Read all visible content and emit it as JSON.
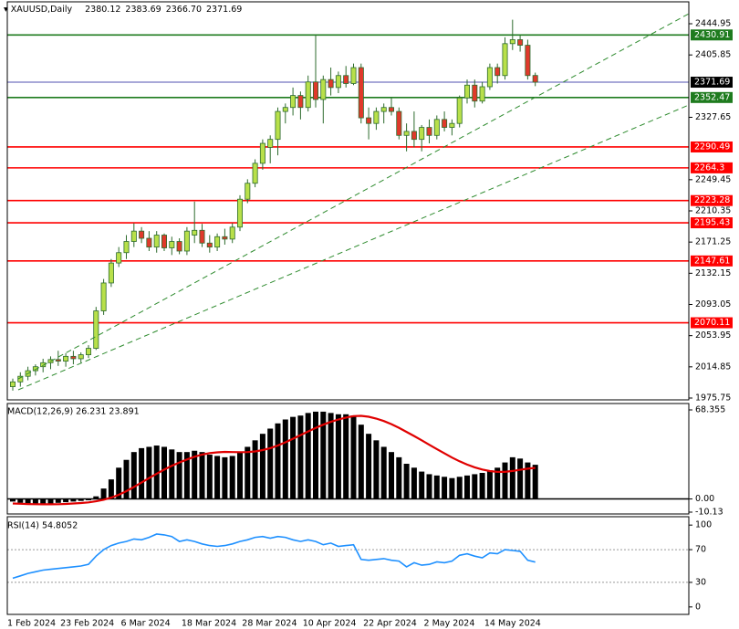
{
  "chart_data": [
    {
      "type": "candlestick",
      "title": "XAUUSD,Daily",
      "ohlc_labels": [
        "2380.12",
        "2383.69",
        "2366.70",
        "2371.69"
      ],
      "open": [
        1990,
        1996,
        2003,
        2010,
        2015,
        2020,
        2024,
        2022,
        2028,
        2025,
        2030,
        2038,
        2085,
        2120,
        2145,
        2158,
        2172,
        2185,
        2176,
        2165,
        2180,
        2164,
        2172,
        2160,
        2180,
        2186,
        2170,
        2165,
        2178,
        2175,
        2190,
        2225,
        2245,
        2270,
        2290,
        2300,
        2335,
        2340,
        2355,
        2340,
        2372,
        2350,
        2375,
        2365,
        2380,
        2370,
        2390,
        2327,
        2320,
        2335,
        2340,
        2335,
        2305,
        2310,
        2300,
        2315,
        2305,
        2325,
        2315,
        2320,
        2352,
        2368,
        2348,
        2366,
        2390,
        2380,
        2420,
        2425,
        2418,
        2380.12
      ],
      "high": [
        2000,
        2008,
        2015,
        2018,
        2025,
        2028,
        2035,
        2032,
        2035,
        2033,
        2042,
        2090,
        2125,
        2150,
        2165,
        2180,
        2195,
        2190,
        2185,
        2185,
        2182,
        2178,
        2176,
        2190,
        2222,
        2194,
        2180,
        2182,
        2188,
        2195,
        2230,
        2250,
        2275,
        2300,
        2305,
        2340,
        2345,
        2365,
        2360,
        2380,
        2431,
        2380,
        2390,
        2385,
        2392,
        2395,
        2395,
        2340,
        2340,
        2345,
        2352,
        2340,
        2320,
        2335,
        2318,
        2325,
        2330,
        2335,
        2325,
        2355,
        2375,
        2375,
        2372,
        2395,
        2395,
        2428,
        2450,
        2430,
        2425,
        2383.69
      ],
      "low": [
        1985,
        1990,
        1998,
        2004,
        2008,
        2012,
        2016,
        2015,
        2018,
        2020,
        2026,
        2036,
        2080,
        2115,
        2140,
        2150,
        2165,
        2170,
        2160,
        2158,
        2160,
        2155,
        2156,
        2155,
        2170,
        2165,
        2158,
        2160,
        2168,
        2170,
        2185,
        2220,
        2240,
        2262,
        2270,
        2280,
        2320,
        2330,
        2325,
        2335,
        2340,
        2320,
        2355,
        2358,
        2365,
        2368,
        2320,
        2300,
        2312,
        2320,
        2330,
        2300,
        2285,
        2290,
        2285,
        2295,
        2300,
        2310,
        2305,
        2315,
        2345,
        2340,
        2345,
        2362,
        2370,
        2375,
        2412,
        2410,
        2375,
        2366.7
      ],
      "close": [
        1996,
        2003,
        2010,
        2015,
        2020,
        2024,
        2022,
        2028,
        2025,
        2030,
        2038,
        2085,
        2120,
        2145,
        2158,
        2172,
        2185,
        2176,
        2165,
        2180,
        2164,
        2172,
        2160,
        2185,
        2186,
        2170,
        2165,
        2178,
        2175,
        2190,
        2225,
        2245,
        2270,
        2295,
        2300,
        2335,
        2340,
        2355,
        2340,
        2372,
        2350,
        2375,
        2365,
        2380,
        2370,
        2390,
        2327,
        2320,
        2335,
        2340,
        2335,
        2305,
        2310,
        2300,
        2315,
        2305,
        2325,
        2315,
        2320,
        2352,
        2368,
        2348,
        2366,
        2390,
        2380,
        2420,
        2425,
        2418,
        2380,
        2371.69
      ],
      "bull_color": "#b8e04a",
      "bear_color": "#e0392b",
      "wick_color": "#2d6b2d",
      "ylim": [
        1974.6,
        2469.0
      ],
      "yticks": [
        2444.95,
        2405.85,
        2327.65,
        2249.45,
        2210.35,
        2171.25,
        2132.15,
        2093.05,
        2053.95,
        2014.85,
        1975.75
      ],
      "levels": [
        {
          "value": 2430.91,
          "color": "#1e7b1e",
          "label_color": "#1e7b1e"
        },
        {
          "value": 2371.69,
          "color": "#5050b0",
          "label_color": "#000000"
        },
        {
          "value": 2352.47,
          "color": "#1e7b1e",
          "label_color": "#1e7b1e"
        },
        {
          "value": 2290.49,
          "color": "#ff0000",
          "label_color": "#ff0000"
        },
        {
          "value": 2264.3,
          "color": "#ff0000",
          "label_color": "#ff0000"
        },
        {
          "value": 2223.28,
          "color": "#ff0000",
          "label_color": "#ff0000"
        },
        {
          "value": 2195.43,
          "color": "#ff0000",
          "label_color": "#ff0000"
        },
        {
          "value": 2147.61,
          "color": "#ff0000",
          "label_color": "#ff0000"
        },
        {
          "value": 2070.11,
          "color": "#ff0000",
          "label_color": "#ff0000"
        }
      ]
    },
    {
      "type": "bar",
      "title": "MACD(12,26,9) 26.231 23.891",
      "values": [
        -2,
        -3,
        -4,
        -4,
        -4.5,
        -4,
        -3,
        -2.5,
        -2,
        -1.5,
        -1,
        2,
        8,
        15,
        24,
        30,
        36,
        39,
        40,
        41,
        40,
        38,
        36,
        36,
        37,
        36,
        34,
        33,
        32,
        33,
        36,
        40,
        45,
        50,
        54,
        58,
        61,
        63,
        64,
        66,
        67,
        67,
        66,
        65,
        65,
        64,
        57,
        50,
        45,
        40,
        36,
        32,
        27,
        24,
        21,
        19,
        18,
        17,
        16,
        17,
        18,
        19,
        20,
        22,
        24,
        28,
        32,
        31,
        28,
        26.231
      ],
      "signal": [
        -3.5,
        -3.7,
        -3.9,
        -4.0,
        -4.1,
        -4.1,
        -4.0,
        -3.8,
        -3.5,
        -3.1,
        -2.6,
        -1.8,
        -0.6,
        1.0,
        3.2,
        6.0,
        9.2,
        12.6,
        16.0,
        19.4,
        22.5,
        25.4,
        28.0,
        30.3,
        32.4,
        34.0,
        35.2,
        35.8,
        36.1,
        36.0,
        35.9,
        36.0,
        36.5,
        37.5,
        39.0,
        41.0,
        43.5,
        46.2,
        49.0,
        51.8,
        54.5,
        57.0,
        59.2,
        61.0,
        62.5,
        63.6,
        63.8,
        63.1,
        61.7,
        59.8,
        57.4,
        54.6,
        51.5,
        48.3,
        45.0,
        41.6,
        38.3,
        35.0,
        31.8,
        28.9,
        26.4,
        24.3,
        22.6,
        21.4,
        20.8,
        20.8,
        21.5,
        22.4,
        23.2,
        23.891
      ],
      "color": "#000000",
      "signal_color": "#e00000",
      "ylim": [
        -10.13,
        68.355
      ],
      "yticks": [
        68.355,
        {
          "value": 0,
          "label": "0.00"
        },
        -10.13
      ]
    },
    {
      "type": "line",
      "title": "RSI(14) 54.8052",
      "categories": [
        "1 Feb 2024",
        null,
        null,
        null,
        null,
        null,
        null,
        "23 Feb 2024",
        null,
        null,
        null,
        null,
        null,
        null,
        null,
        "6 Mar 2024",
        null,
        null,
        null,
        null,
        null,
        null,
        null,
        "18 Mar 2024",
        null,
        null,
        null,
        null,
        null,
        null,
        null,
        "28 Mar 2024",
        null,
        null,
        null,
        null,
        null,
        null,
        null,
        "10 Apr 2024",
        null,
        null,
        null,
        null,
        null,
        null,
        null,
        "22 Apr 2024",
        null,
        null,
        null,
        null,
        null,
        null,
        null,
        "2 May 2024",
        null,
        null,
        null,
        null,
        null,
        null,
        null,
        "14 May 2024",
        null,
        null,
        null,
        null,
        null,
        null
      ],
      "values": [
        35,
        38,
        41,
        43,
        45,
        46,
        47,
        48,
        49,
        50,
        52,
        62,
        70,
        75,
        78,
        80,
        83,
        82,
        85,
        89,
        88,
        86,
        80,
        82,
        80,
        77,
        75,
        74,
        75,
        77,
        80,
        82,
        85,
        86,
        84,
        86,
        85,
        82,
        80,
        82,
        80,
        76,
        78,
        74,
        75,
        76,
        58,
        57,
        58,
        59,
        57,
        56,
        49,
        54,
        51,
        52,
        55,
        54,
        56,
        63,
        65,
        62,
        60,
        66,
        65,
        70,
        69,
        68,
        57,
        54.8052
      ],
      "color": "#1e90ff",
      "ylim": [
        -8,
        108
      ],
      "yticks": [
        100,
        70,
        30,
        0
      ],
      "levels": [
        70,
        30
      ]
    }
  ]
}
